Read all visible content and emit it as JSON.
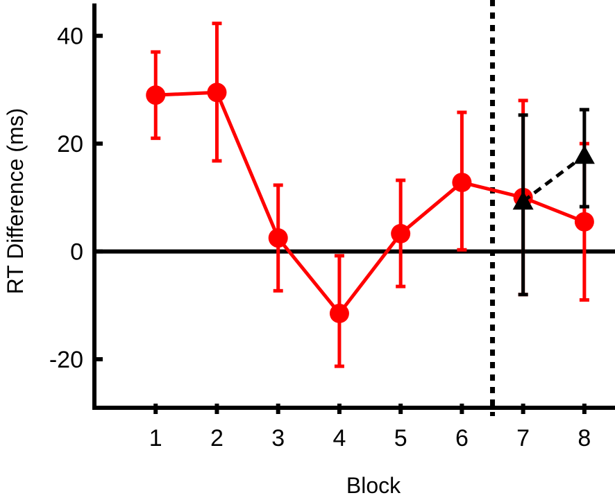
{
  "chart_data": {
    "type": "line",
    "title": "",
    "xlabel": "Block",
    "ylabel": "RT Difference (ms)",
    "xlim": [
      0.0,
      8.5
    ],
    "ylim": [
      -29,
      46
    ],
    "xticks": [
      1,
      2,
      3,
      4,
      5,
      6,
      7,
      8
    ],
    "yticks": [
      -20,
      0,
      20,
      40
    ],
    "zero_line": 0,
    "divider_x": 6.5,
    "series": [
      {
        "color": "#ff0000",
        "marker": "circle",
        "line_style": "solid",
        "x": [
          1,
          2,
          3,
          4,
          5,
          6,
          7,
          8
        ],
        "y": [
          29,
          29.5,
          2.5,
          -11.5,
          3.3,
          12.8,
          10,
          5.5
        ],
        "err_low": [
          21,
          16.8,
          -7.3,
          -21.3,
          -6.5,
          0.3,
          -8,
          -9
        ],
        "err_high": [
          37,
          42.3,
          12.3,
          -0.8,
          13.2,
          25.8,
          28,
          20
        ]
      },
      {
        "color": "#000000",
        "marker": "triangle",
        "line_style": "dashed",
        "x": [
          7,
          8
        ],
        "y": [
          9.3,
          17.8
        ],
        "err_low": [
          -8,
          8.3
        ],
        "err_high": [
          25.3,
          26.3
        ]
      }
    ]
  }
}
